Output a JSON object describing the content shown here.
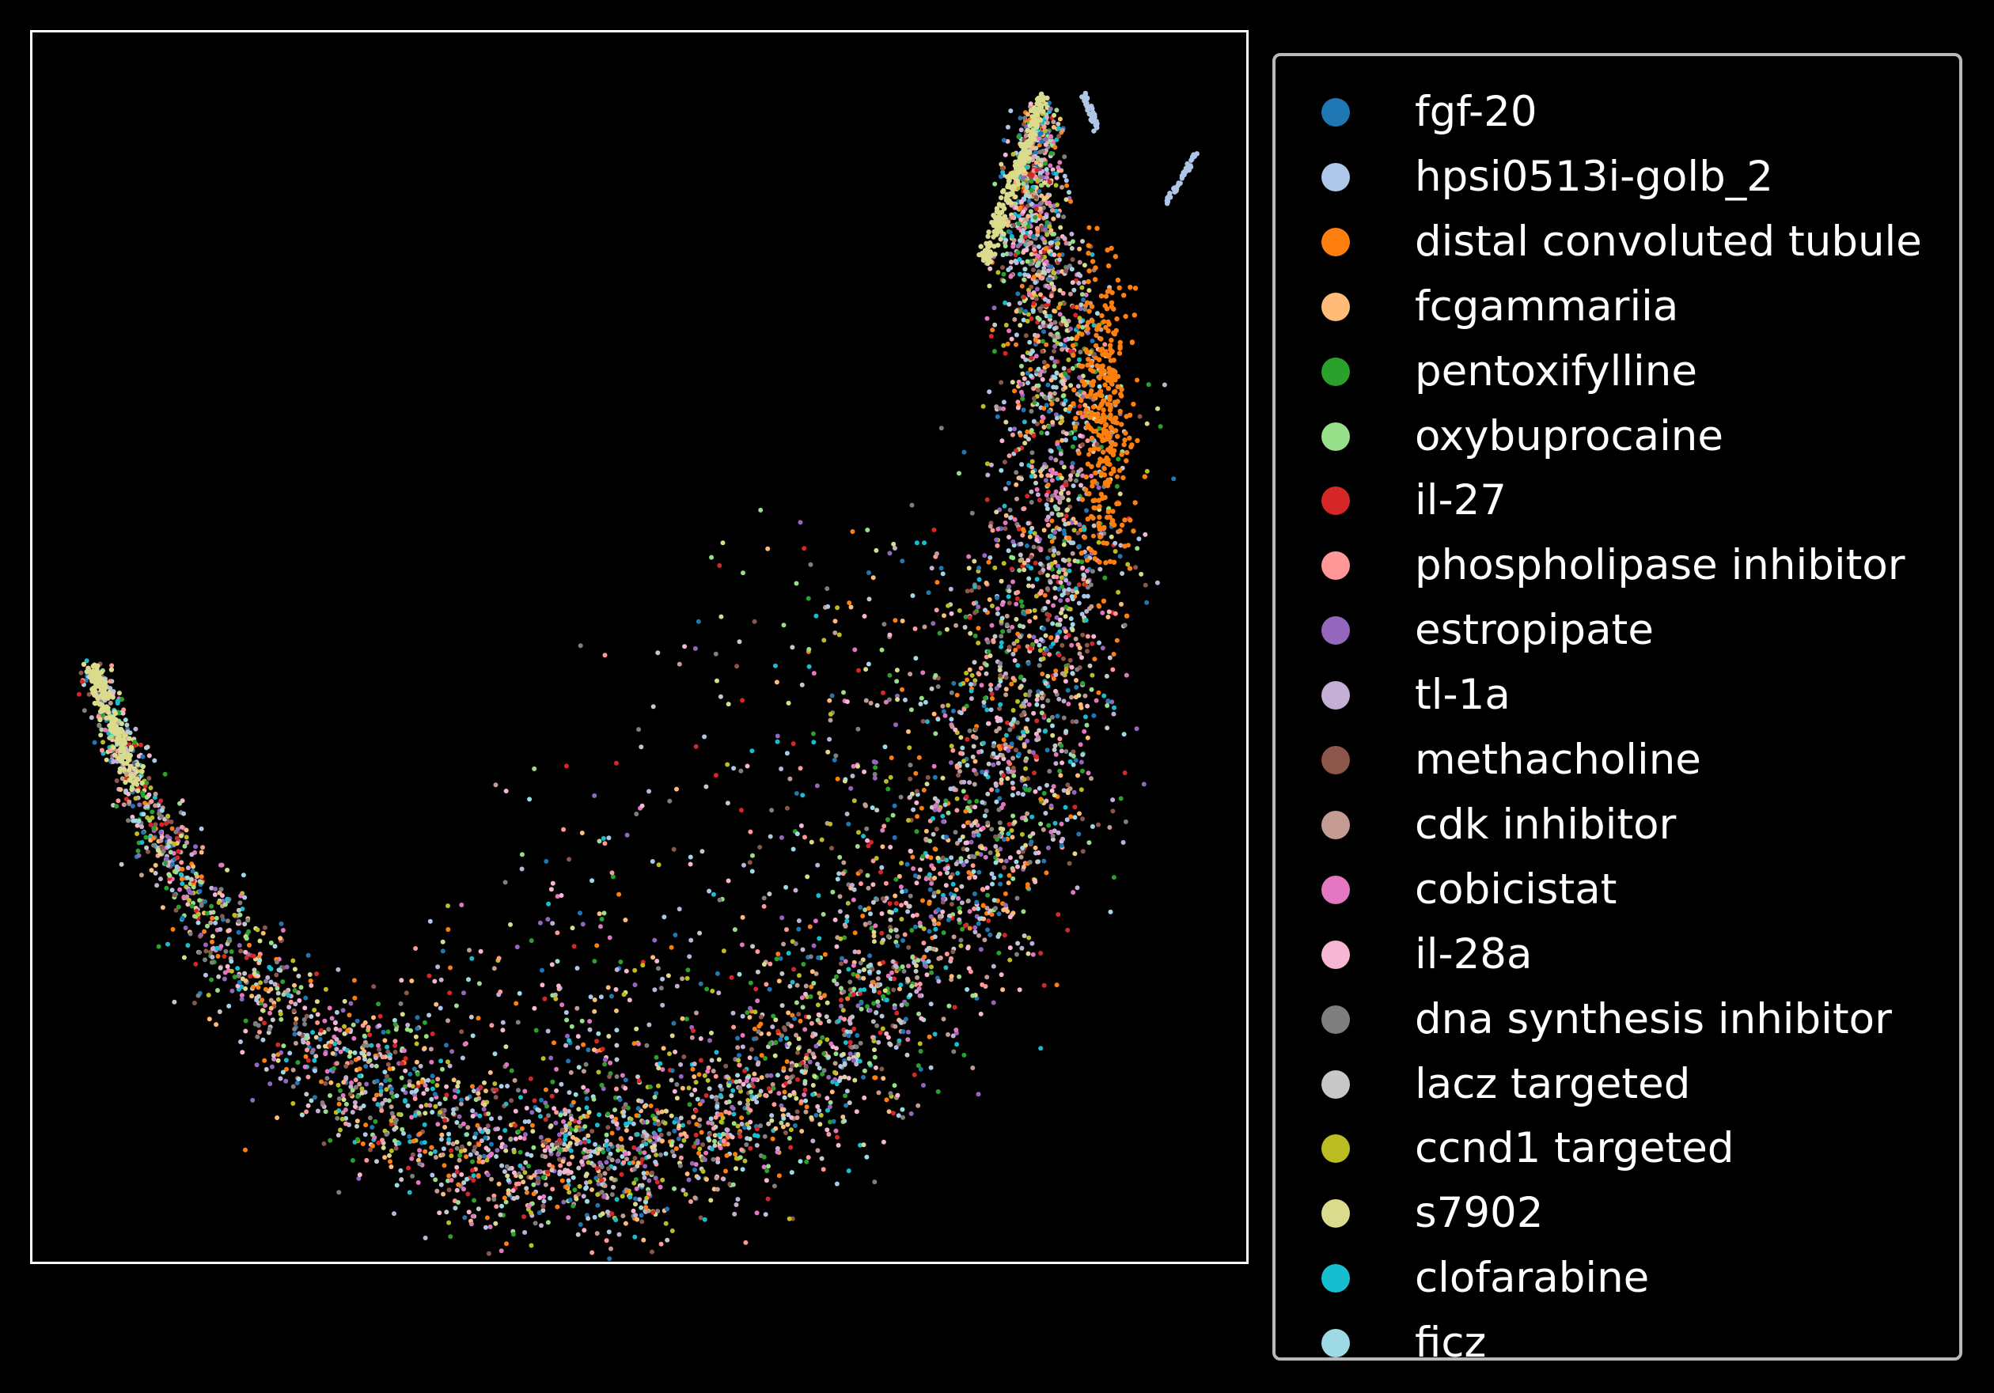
{
  "chart_data": {
    "type": "scatter",
    "title": "",
    "xlabel": "",
    "ylabel": "",
    "axes": {
      "ticks": "none",
      "frame_color": "#ffffff",
      "background": "#000000"
    },
    "legend_placement": "outside-right",
    "series": [
      {
        "name": "fgf-20",
        "color": "#1f77b4"
      },
      {
        "name": "hpsi0513i-golb_2",
        "color": "#aec7e8"
      },
      {
        "name": "distal convoluted tubule",
        "color": "#ff7f0e"
      },
      {
        "name": "fcgammariia",
        "color": "#ffbb78"
      },
      {
        "name": "pentoxifylline",
        "color": "#2ca02c"
      },
      {
        "name": "oxybuprocaine",
        "color": "#98df8a"
      },
      {
        "name": "il-27",
        "color": "#d62728"
      },
      {
        "name": "phospholipase inhibitor",
        "color": "#ff9896"
      },
      {
        "name": "estropipate",
        "color": "#9467bd"
      },
      {
        "name": "tl-1a",
        "color": "#c5b0d5"
      },
      {
        "name": "methacholine",
        "color": "#8c564b"
      },
      {
        "name": "cdk inhibitor",
        "color": "#c49c94"
      },
      {
        "name": "cobicistat",
        "color": "#e377c2"
      },
      {
        "name": "il-28a",
        "color": "#f7b6d2"
      },
      {
        "name": "dna synthesis inhibitor",
        "color": "#7f7f7f"
      },
      {
        "name": "lacz targeted",
        "color": "#c7c7c7"
      },
      {
        "name": "ccnd1 targeted",
        "color": "#bcbd22"
      },
      {
        "name": "s7902",
        "color": "#dbdb8d"
      },
      {
        "name": "clofarabine",
        "color": "#17becf"
      },
      {
        "name": "ficz",
        "color": "#9edae5"
      }
    ]
  }
}
